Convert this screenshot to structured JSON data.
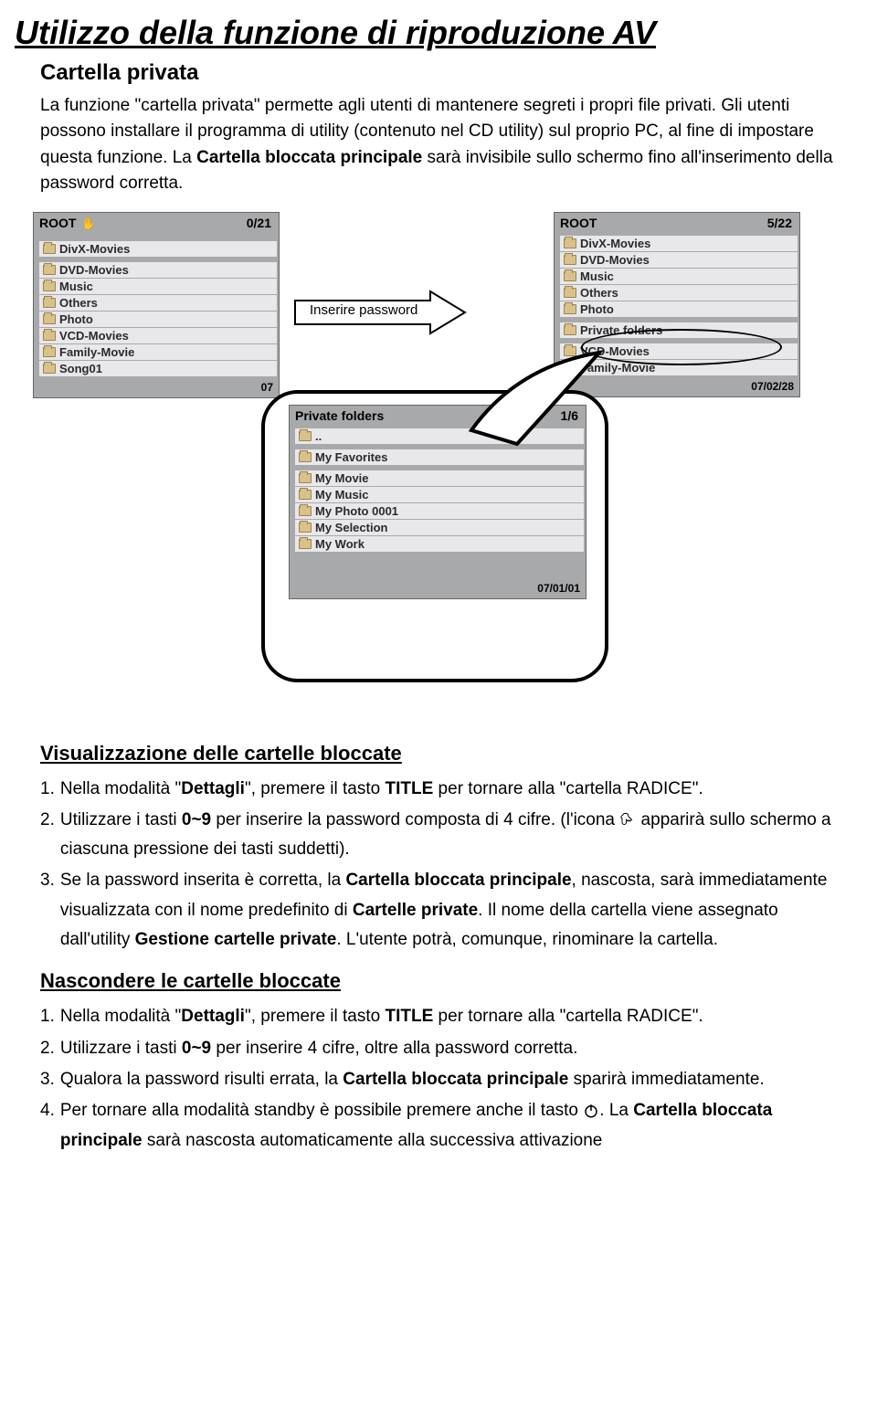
{
  "title": "Utilizzo della funzione di riproduzione AV",
  "section": "Cartella privata",
  "intro": "La funzione \"cartella privata\" permette agli utenti di mantenere segreti i propri file privati. Gli utenti possono installare il programma di utility (contenuto nel CD utility) sul proprio PC, al fine di impostare questa funzione. La <b>Cartella bloccata principale</b> sarà invisibile sullo schermo fino all'inserimento della password corretta.",
  "panel_left": {
    "title": "ROOT",
    "counter": "0/21",
    "items": [
      {
        "label": "DivX-Movies",
        "selected": true
      },
      {
        "label": "DVD-Movies"
      },
      {
        "label": "Music"
      },
      {
        "label": "Others"
      },
      {
        "label": "Photo"
      },
      {
        "label": "VCD-Movies"
      },
      {
        "label": "Family-Movie",
        "icon": "vcd"
      },
      {
        "label": "Song01",
        "icon": "mp3"
      }
    ],
    "date": "07"
  },
  "arrow_label": "Inserire password",
  "panel_right": {
    "title": "ROOT",
    "counter": "5/22",
    "items": [
      {
        "label": "DivX-Movies"
      },
      {
        "label": "DVD-Movies"
      },
      {
        "label": "Music"
      },
      {
        "label": "Others"
      },
      {
        "label": "Photo"
      },
      {
        "label": "Private folders",
        "highlighted": true
      },
      {
        "label": "VCD-Movies"
      },
      {
        "label": "Family-Movie"
      }
    ],
    "date": "07/02/28"
  },
  "callout_panel": {
    "title": "Private folders",
    "counter": "1/6",
    "items": [
      {
        "label": ".."
      },
      {
        "label": "My Favorites",
        "selected": true
      },
      {
        "label": "My Movie"
      },
      {
        "label": "My Music"
      },
      {
        "label": "My Photo 0001"
      },
      {
        "label": "My Selection"
      },
      {
        "label": "My Work"
      }
    ],
    "date": "07/01/01"
  },
  "view_section": {
    "title": "Visualizzazione delle cartelle bloccate",
    "items": [
      {
        "n": "1.",
        "html": "Nella modalità \"<b>Dettagli</b>\", premere il tasto <b>TITLE</b> per tornare alla \"cartella RADICE\"."
      },
      {
        "n": "2.",
        "html": "Utilizzare i tasti <b>0~9</b> per inserire la password composta di 4 cifre. (l'icona <svg class=\"inline-icon\" viewBox=\"0 0 24 24\"><path d=\"M10 2c3 0 3 3 3 3v1l5 5-2 2-1-1-1 1-1-1-1 1-2-2v4c0 4-6 4-6 0V9c-2 0-2-3 0-4l3-3h3z\" fill=\"none\" stroke=\"#000\" stroke-width=\"1.3\"/></svg> apparirà sullo schermo a ciascuna pressione dei tasti suddetti)."
      },
      {
        "n": "3.",
        "html": "Se la password inserita è corretta, la <b>Cartella bloccata principale</b>, nascosta, sarà immediatamente visualizzata con il nome predefinito di <b>Cartelle private</b>. Il nome della cartella viene assegnato dall'utility <b>Gestione cartelle private</b>. L'utente potrà, comunque, rinominare la cartella."
      }
    ]
  },
  "hide_section": {
    "title": "Nascondere le cartelle bloccate",
    "items": [
      {
        "n": "1.",
        "html": "Nella modalità \"<b>Dettagli</b>\", premere il tasto <b>TITLE</b> per tornare alla \"cartella RADICE\"."
      },
      {
        "n": "2.",
        "html": "Utilizzare i tasti <b>0~9</b> per inserire 4 cifre, oltre alla password corretta."
      },
      {
        "n": "3.",
        "html": "Qualora la password risulti errata, la <b>Cartella bloccata principale</b> sparirà immediatamente."
      },
      {
        "n": "4.",
        "html": "Per tornare alla modalità standby è possibile premere anche il tasto <svg class=\"inline-icon\" viewBox=\"0 0 24 24\"><circle cx=\"12\" cy=\"13\" r=\"8\" fill=\"none\" stroke=\"#000\" stroke-width=\"2\"/><line x1=\"12\" y1=\"3\" x2=\"12\" y2=\"12\" stroke=\"#000\" stroke-width=\"2\"/></svg>. La <b>Cartella bloccata principale</b> sarà nascosta automaticamente alla successiva attivazione"
      }
    ]
  },
  "colors": {
    "panel_bg": "#a8a9ab",
    "row_bg": "#e8e8ea",
    "folder": "#d9c28a"
  }
}
